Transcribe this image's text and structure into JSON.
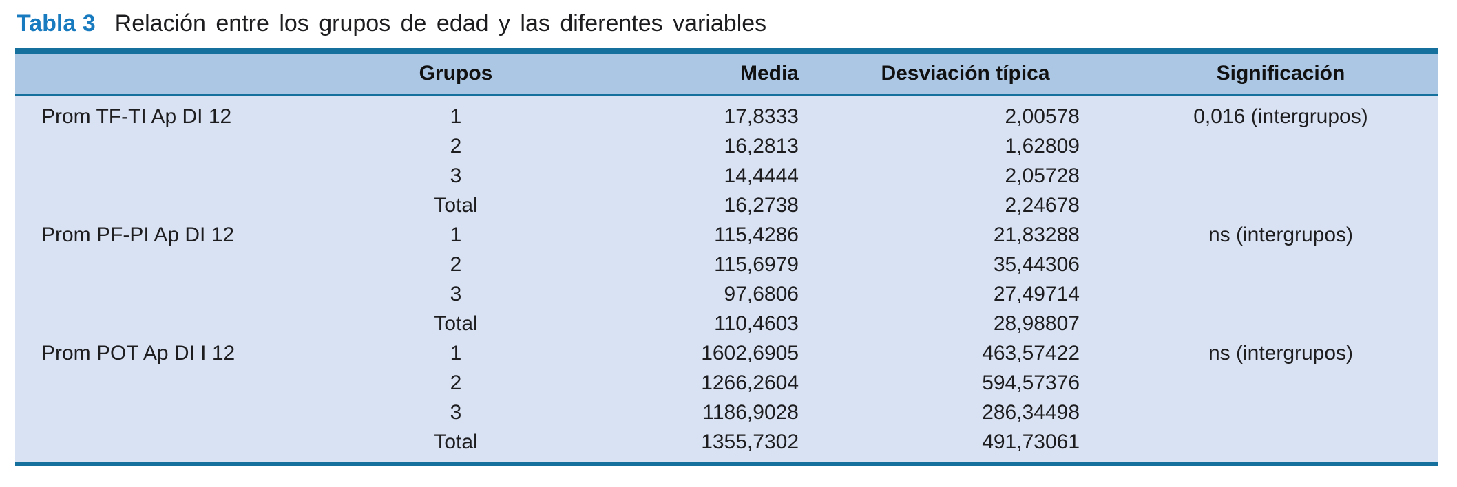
{
  "caption": {
    "label": "Tabla 3",
    "text": "Relación entre los grupos de edad y las diferentes variables"
  },
  "colors": {
    "rule": "#15709d",
    "header_bg": "#abc7e4",
    "body_bg": "#d9e2f3",
    "caption_blue": "#187abf"
  },
  "table": {
    "headers": [
      "",
      "Grupos",
      "Media",
      "Desviación típica",
      "Significación"
    ],
    "groups": [
      {
        "variable": "Prom TF-TI Ap DI 12",
        "significance": "0,016 (intergrupos)",
        "rows": [
          {
            "grupo": "1",
            "media": "17,8333",
            "sd": "2,00578"
          },
          {
            "grupo": "2",
            "media": "16,2813",
            "sd": "1,62809"
          },
          {
            "grupo": "3",
            "media": "14,4444",
            "sd": "2,05728"
          },
          {
            "grupo": "Total",
            "media": "16,2738",
            "sd": "2,24678"
          }
        ]
      },
      {
        "variable": "Prom PF-PI Ap DI 12",
        "significance": "ns (intergrupos)",
        "rows": [
          {
            "grupo": "1",
            "media": "115,4286",
            "sd": "21,83288"
          },
          {
            "grupo": "2",
            "media": "115,6979",
            "sd": "35,44306"
          },
          {
            "grupo": "3",
            "media": "97,6806",
            "sd": "27,49714"
          },
          {
            "grupo": "Total",
            "media": "110,4603",
            "sd": "28,98807"
          }
        ]
      },
      {
        "variable": "Prom POT Ap DI I 12",
        "significance": "ns (intergrupos)",
        "rows": [
          {
            "grupo": "1",
            "media": "1602,6905",
            "sd": "463,57422"
          },
          {
            "grupo": "2",
            "media": "1266,2604",
            "sd": "594,57376"
          },
          {
            "grupo": "3",
            "media": "1186,9028",
            "sd": "286,34498"
          },
          {
            "grupo": "Total",
            "media": "1355,7302",
            "sd": "491,73061"
          }
        ]
      }
    ]
  }
}
